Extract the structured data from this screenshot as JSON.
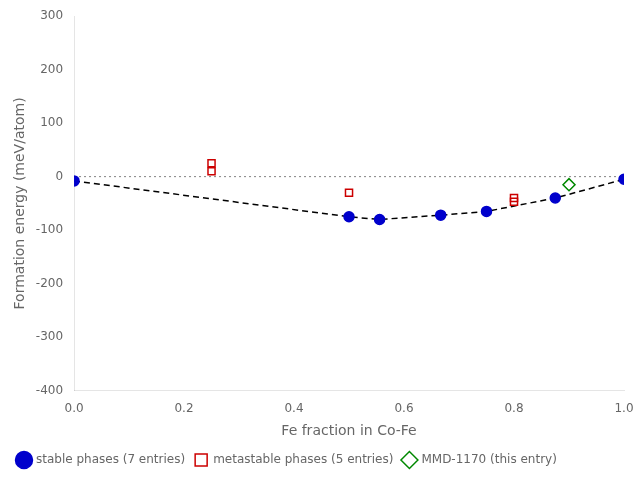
{
  "chart_data": {
    "type": "scatter",
    "xlabel": "Fe fraction in Co-Fe",
    "ylabel": "Formation energy (meV/atom)",
    "xlim": [
      0.0,
      1.0
    ],
    "ylim": [
      -400,
      300
    ],
    "xticks": [
      {
        "value": 0,
        "label": "0.0"
      },
      0.2,
      0.4,
      0.6,
      0.8,
      {
        "value": 1,
        "label": "1.0"
      }
    ],
    "yticks": [
      -400,
      -300,
      -200,
      -100,
      0,
      100,
      200,
      300
    ],
    "grid": false,
    "legend": "lower left",
    "series": [
      {
        "name": "stable phases (7 entries)",
        "color": "#0000cc",
        "marker": "circle",
        "x": [
          0.0,
          0.5,
          0.5556,
          0.6667,
          0.75,
          0.875,
          1.0
        ],
        "values": [
          -8,
          -75,
          -80,
          -72,
          -65,
          -40,
          -5
        ]
      },
      {
        "name": "metastable phases (5 entries)",
        "color": "#cc0000",
        "marker": "open_square",
        "x": [
          0.25,
          0.25,
          0.5,
          0.8,
          0.8
        ],
        "values": [
          25,
          10,
          -30,
          -40,
          -47
        ]
      },
      {
        "name": "MMD-1170 (this entry)",
        "color": "#008800",
        "marker": "open_diamond",
        "x": [
          0.9
        ],
        "values": [
          -15
        ]
      },
      {
        "type": "line",
        "color": "#000000",
        "line_style": "dashed",
        "x": [
          0.0,
          0.5,
          0.5556,
          0.6667,
          0.75,
          0.875,
          1.0
        ],
        "values": [
          -8,
          -75,
          -80,
          -72,
          -65,
          -40,
          -5
        ]
      },
      {
        "type": "line",
        "color": "gray",
        "line_style": "dotted",
        "x": [
          0.0,
          1.0
        ],
        "values": [
          0,
          0
        ]
      }
    ]
  }
}
